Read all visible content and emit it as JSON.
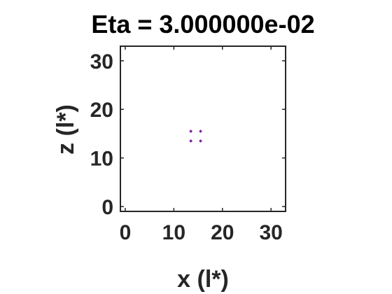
{
  "chart_data": {
    "type": "scatter",
    "title": "Eta = 3.000000e-02",
    "xlabel": "x (l*)",
    "ylabel": "z (l*)",
    "xlim": [
      -1,
      33
    ],
    "ylim": [
      -1,
      33
    ],
    "xticks": [
      0,
      10,
      20,
      30
    ],
    "yticks": [
      0,
      10,
      20,
      30
    ],
    "xtick_labels": [
      "0",
      "10",
      "20",
      "30"
    ],
    "ytick_labels": [
      "0",
      "10",
      "20",
      "30"
    ],
    "grid": false,
    "legend": "none",
    "marker_color": "#7E1E9C",
    "axis_color": "#262626",
    "points": [
      {
        "x": 13.5,
        "y": 15.5
      },
      {
        "x": 15.5,
        "y": 15.5
      },
      {
        "x": 13.5,
        "y": 13.5
      },
      {
        "x": 15.5,
        "y": 13.5
      }
    ]
  }
}
